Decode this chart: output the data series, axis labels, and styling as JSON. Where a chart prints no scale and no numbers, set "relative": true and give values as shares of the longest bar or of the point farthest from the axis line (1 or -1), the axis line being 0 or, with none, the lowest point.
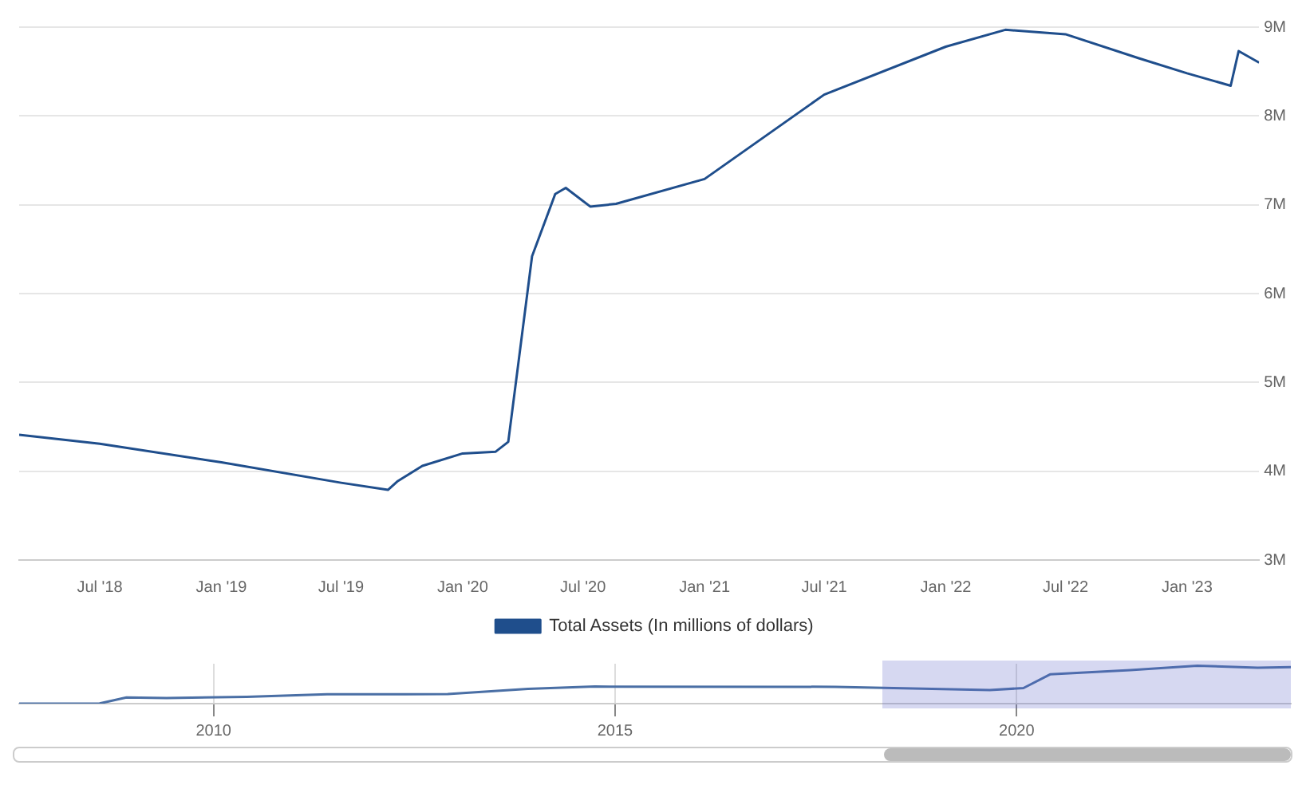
{
  "chart_data": [
    {
      "type": "line",
      "x": [
        "2018-03-01",
        "2018-07-01",
        "2019-01-01",
        "2019-07-01",
        "2019-09-10",
        "2019-09-25",
        "2019-11-01",
        "2020-01-01",
        "2020-02-20",
        "2020-03-10",
        "2020-03-25",
        "2020-04-15",
        "2020-05-20",
        "2020-06-05",
        "2020-07-12",
        "2020-08-20",
        "2021-01-01",
        "2021-07-01",
        "2022-01-01",
        "2022-04-01",
        "2022-07-01",
        "2022-10-20",
        "2023-01-01",
        "2023-03-08",
        "2023-03-20",
        "2023-04-20"
      ],
      "series": [
        {
          "name": "Total Assets (In millions of dollars)",
          "color": "#1f4e8c",
          "values": [
            4410000,
            4310000,
            4100000,
            3870000,
            3790000,
            3890000,
            4060000,
            4200000,
            4220000,
            4330000,
            5200000,
            6420000,
            7120000,
            7190000,
            6980000,
            7010000,
            7290000,
            8240000,
            8780000,
            8970000,
            8920000,
            8650000,
            8480000,
            8340000,
            8730000,
            8600000
          ]
        }
      ],
      "xlim": [
        "2018-03-01",
        "2023-04-20"
      ],
      "xticks": [
        {
          "value": "2018-07-01",
          "label": "Jul '18"
        },
        {
          "value": "2019-01-01",
          "label": "Jan '19"
        },
        {
          "value": "2019-07-01",
          "label": "Jul '19"
        },
        {
          "value": "2020-01-01",
          "label": "Jan '20"
        },
        {
          "value": "2020-07-01",
          "label": "Jul '20"
        },
        {
          "value": "2021-01-01",
          "label": "Jan '21"
        },
        {
          "value": "2021-07-01",
          "label": "Jul '21"
        },
        {
          "value": "2022-01-01",
          "label": "Jan '22"
        },
        {
          "value": "2022-07-01",
          "label": "Jul '22"
        },
        {
          "value": "2023-01-01",
          "label": "Jan '23"
        }
      ],
      "ylim": [
        3000000,
        9000000
      ],
      "yticks": [
        {
          "value": 3000000,
          "label": "3M"
        },
        {
          "value": 4000000,
          "label": "4M"
        },
        {
          "value": 5000000,
          "label": "5M"
        },
        {
          "value": 6000000,
          "label": "6M"
        },
        {
          "value": 7000000,
          "label": "7M"
        },
        {
          "value": 8000000,
          "label": "8M"
        },
        {
          "value": 9000000,
          "label": "9M"
        }
      ],
      "grid": "y",
      "legend": "bottom",
      "marker": "none",
      "line_style": "solid"
    },
    {
      "type": "line",
      "relative": true,
      "x": [
        "2007-08-01",
        "2008-08-01",
        "2008-12-01",
        "2009-06-01",
        "2010-06-01",
        "2011-06-01",
        "2012-12-01",
        "2013-12-01",
        "2014-10-01",
        "2017-10-01",
        "2019-09-01",
        "2020-02-01",
        "2020-06-01",
        "2021-06-01",
        "2022-04-01",
        "2023-01-01",
        "2023-06-01"
      ],
      "series": [
        {
          "color": "#4a6fa5",
          "values": [
            0,
            0.004,
            0.164,
            0.146,
            0.18,
            0.245,
            0.251,
            0.387,
            0.449,
            0.443,
            0.357,
            0.41,
            0.77,
            0.88,
            1,
            0.944,
            0.96
          ]
        }
      ],
      "xlim": [
        "2007-08-01",
        "2023-06-01"
      ],
      "xticks": [
        "2010",
        "2015",
        "2020"
      ],
      "grid": "x",
      "tick_labels": "x"
    }
  ]
}
